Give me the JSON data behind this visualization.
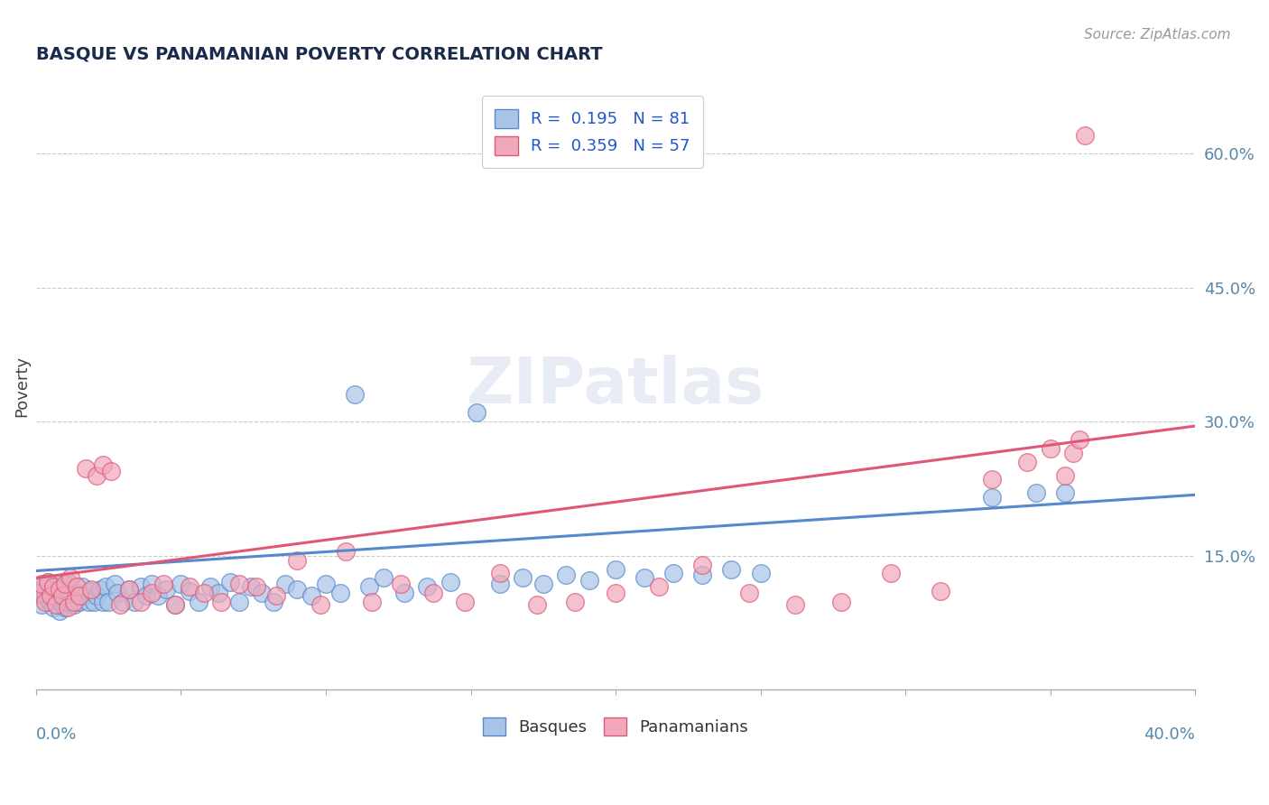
{
  "title": "BASQUE VS PANAMANIAN POVERTY CORRELATION CHART",
  "source": "Source: ZipAtlas.com",
  "ylabel": "Poverty",
  "xmin": 0.0,
  "xmax": 0.4,
  "ymin": 0.0,
  "ymax": 0.68,
  "yticks": [
    0.15,
    0.3,
    0.45,
    0.6
  ],
  "ytick_labels": [
    "15.0%",
    "30.0%",
    "45.0%",
    "60.0%"
  ],
  "xticks": [
    0.0,
    0.05,
    0.1,
    0.15,
    0.2,
    0.25,
    0.3,
    0.35,
    0.4
  ],
  "grid_color": "#cccccc",
  "background_color": "#ffffff",
  "basque_color": "#aac4e8",
  "panamanian_color": "#f0a8ba",
  "basque_line_color": "#5588cc",
  "panamanian_line_color": "#e05878",
  "basque_R": 0.195,
  "basque_N": 81,
  "panamanian_R": 0.359,
  "panamanian_N": 57,
  "watermark": "ZIPatlas",
  "basque_x": [
    0.001,
    0.002,
    0.003,
    0.003,
    0.004,
    0.004,
    0.005,
    0.005,
    0.006,
    0.006,
    0.007,
    0.007,
    0.008,
    0.008,
    0.009,
    0.009,
    0.01,
    0.01,
    0.011,
    0.011,
    0.012,
    0.013,
    0.014,
    0.015,
    0.016,
    0.017,
    0.018,
    0.019,
    0.02,
    0.021,
    0.022,
    0.023,
    0.024,
    0.025,
    0.027,
    0.028,
    0.03,
    0.032,
    0.034,
    0.036,
    0.038,
    0.04,
    0.042,
    0.045,
    0.048,
    0.05,
    0.053,
    0.056,
    0.06,
    0.063,
    0.067,
    0.07,
    0.074,
    0.078,
    0.082,
    0.086,
    0.09,
    0.095,
    0.1,
    0.105,
    0.11,
    0.115,
    0.12,
    0.127,
    0.135,
    0.143,
    0.152,
    0.16,
    0.168,
    0.175,
    0.183,
    0.191,
    0.2,
    0.21,
    0.22,
    0.23,
    0.24,
    0.25,
    0.33,
    0.345,
    0.355
  ],
  "basque_y": [
    0.11,
    0.095,
    0.105,
    0.118,
    0.1,
    0.12,
    0.098,
    0.112,
    0.092,
    0.115,
    0.1,
    0.108,
    0.088,
    0.118,
    0.095,
    0.11,
    0.092,
    0.115,
    0.098,
    0.12,
    0.102,
    0.095,
    0.108,
    0.098,
    0.115,
    0.105,
    0.098,
    0.11,
    0.098,
    0.105,
    0.112,
    0.098,
    0.115,
    0.098,
    0.118,
    0.108,
    0.098,
    0.112,
    0.098,
    0.115,
    0.105,
    0.118,
    0.105,
    0.112,
    0.095,
    0.118,
    0.11,
    0.098,
    0.115,
    0.108,
    0.12,
    0.098,
    0.115,
    0.108,
    0.098,
    0.118,
    0.112,
    0.105,
    0.118,
    0.108,
    0.33,
    0.115,
    0.125,
    0.108,
    0.115,
    0.12,
    0.31,
    0.118,
    0.125,
    0.118,
    0.128,
    0.122,
    0.135,
    0.125,
    0.13,
    0.128,
    0.135,
    0.13,
    0.215,
    0.22,
    0.22
  ],
  "panamanian_x": [
    0.001,
    0.002,
    0.003,
    0.004,
    0.005,
    0.006,
    0.007,
    0.008,
    0.009,
    0.01,
    0.011,
    0.012,
    0.013,
    0.014,
    0.015,
    0.017,
    0.019,
    0.021,
    0.023,
    0.026,
    0.029,
    0.032,
    0.036,
    0.04,
    0.044,
    0.048,
    0.053,
    0.058,
    0.064,
    0.07,
    0.076,
    0.083,
    0.09,
    0.098,
    0.107,
    0.116,
    0.126,
    0.137,
    0.148,
    0.16,
    0.173,
    0.186,
    0.2,
    0.215,
    0.23,
    0.246,
    0.262,
    0.278,
    0.295,
    0.312,
    0.33,
    0.342,
    0.35,
    0.355,
    0.358,
    0.36,
    0.362
  ],
  "panamanian_y": [
    0.108,
    0.118,
    0.098,
    0.12,
    0.105,
    0.115,
    0.095,
    0.112,
    0.105,
    0.118,
    0.092,
    0.125,
    0.098,
    0.115,
    0.105,
    0.248,
    0.112,
    0.24,
    0.252,
    0.245,
    0.095,
    0.112,
    0.098,
    0.108,
    0.118,
    0.095,
    0.115,
    0.108,
    0.098,
    0.118,
    0.115,
    0.105,
    0.145,
    0.095,
    0.155,
    0.098,
    0.118,
    0.108,
    0.098,
    0.13,
    0.095,
    0.098,
    0.108,
    0.115,
    0.14,
    0.108,
    0.095,
    0.098,
    0.13,
    0.11,
    0.235,
    0.255,
    0.27,
    0.24,
    0.265,
    0.28,
    0.62
  ]
}
